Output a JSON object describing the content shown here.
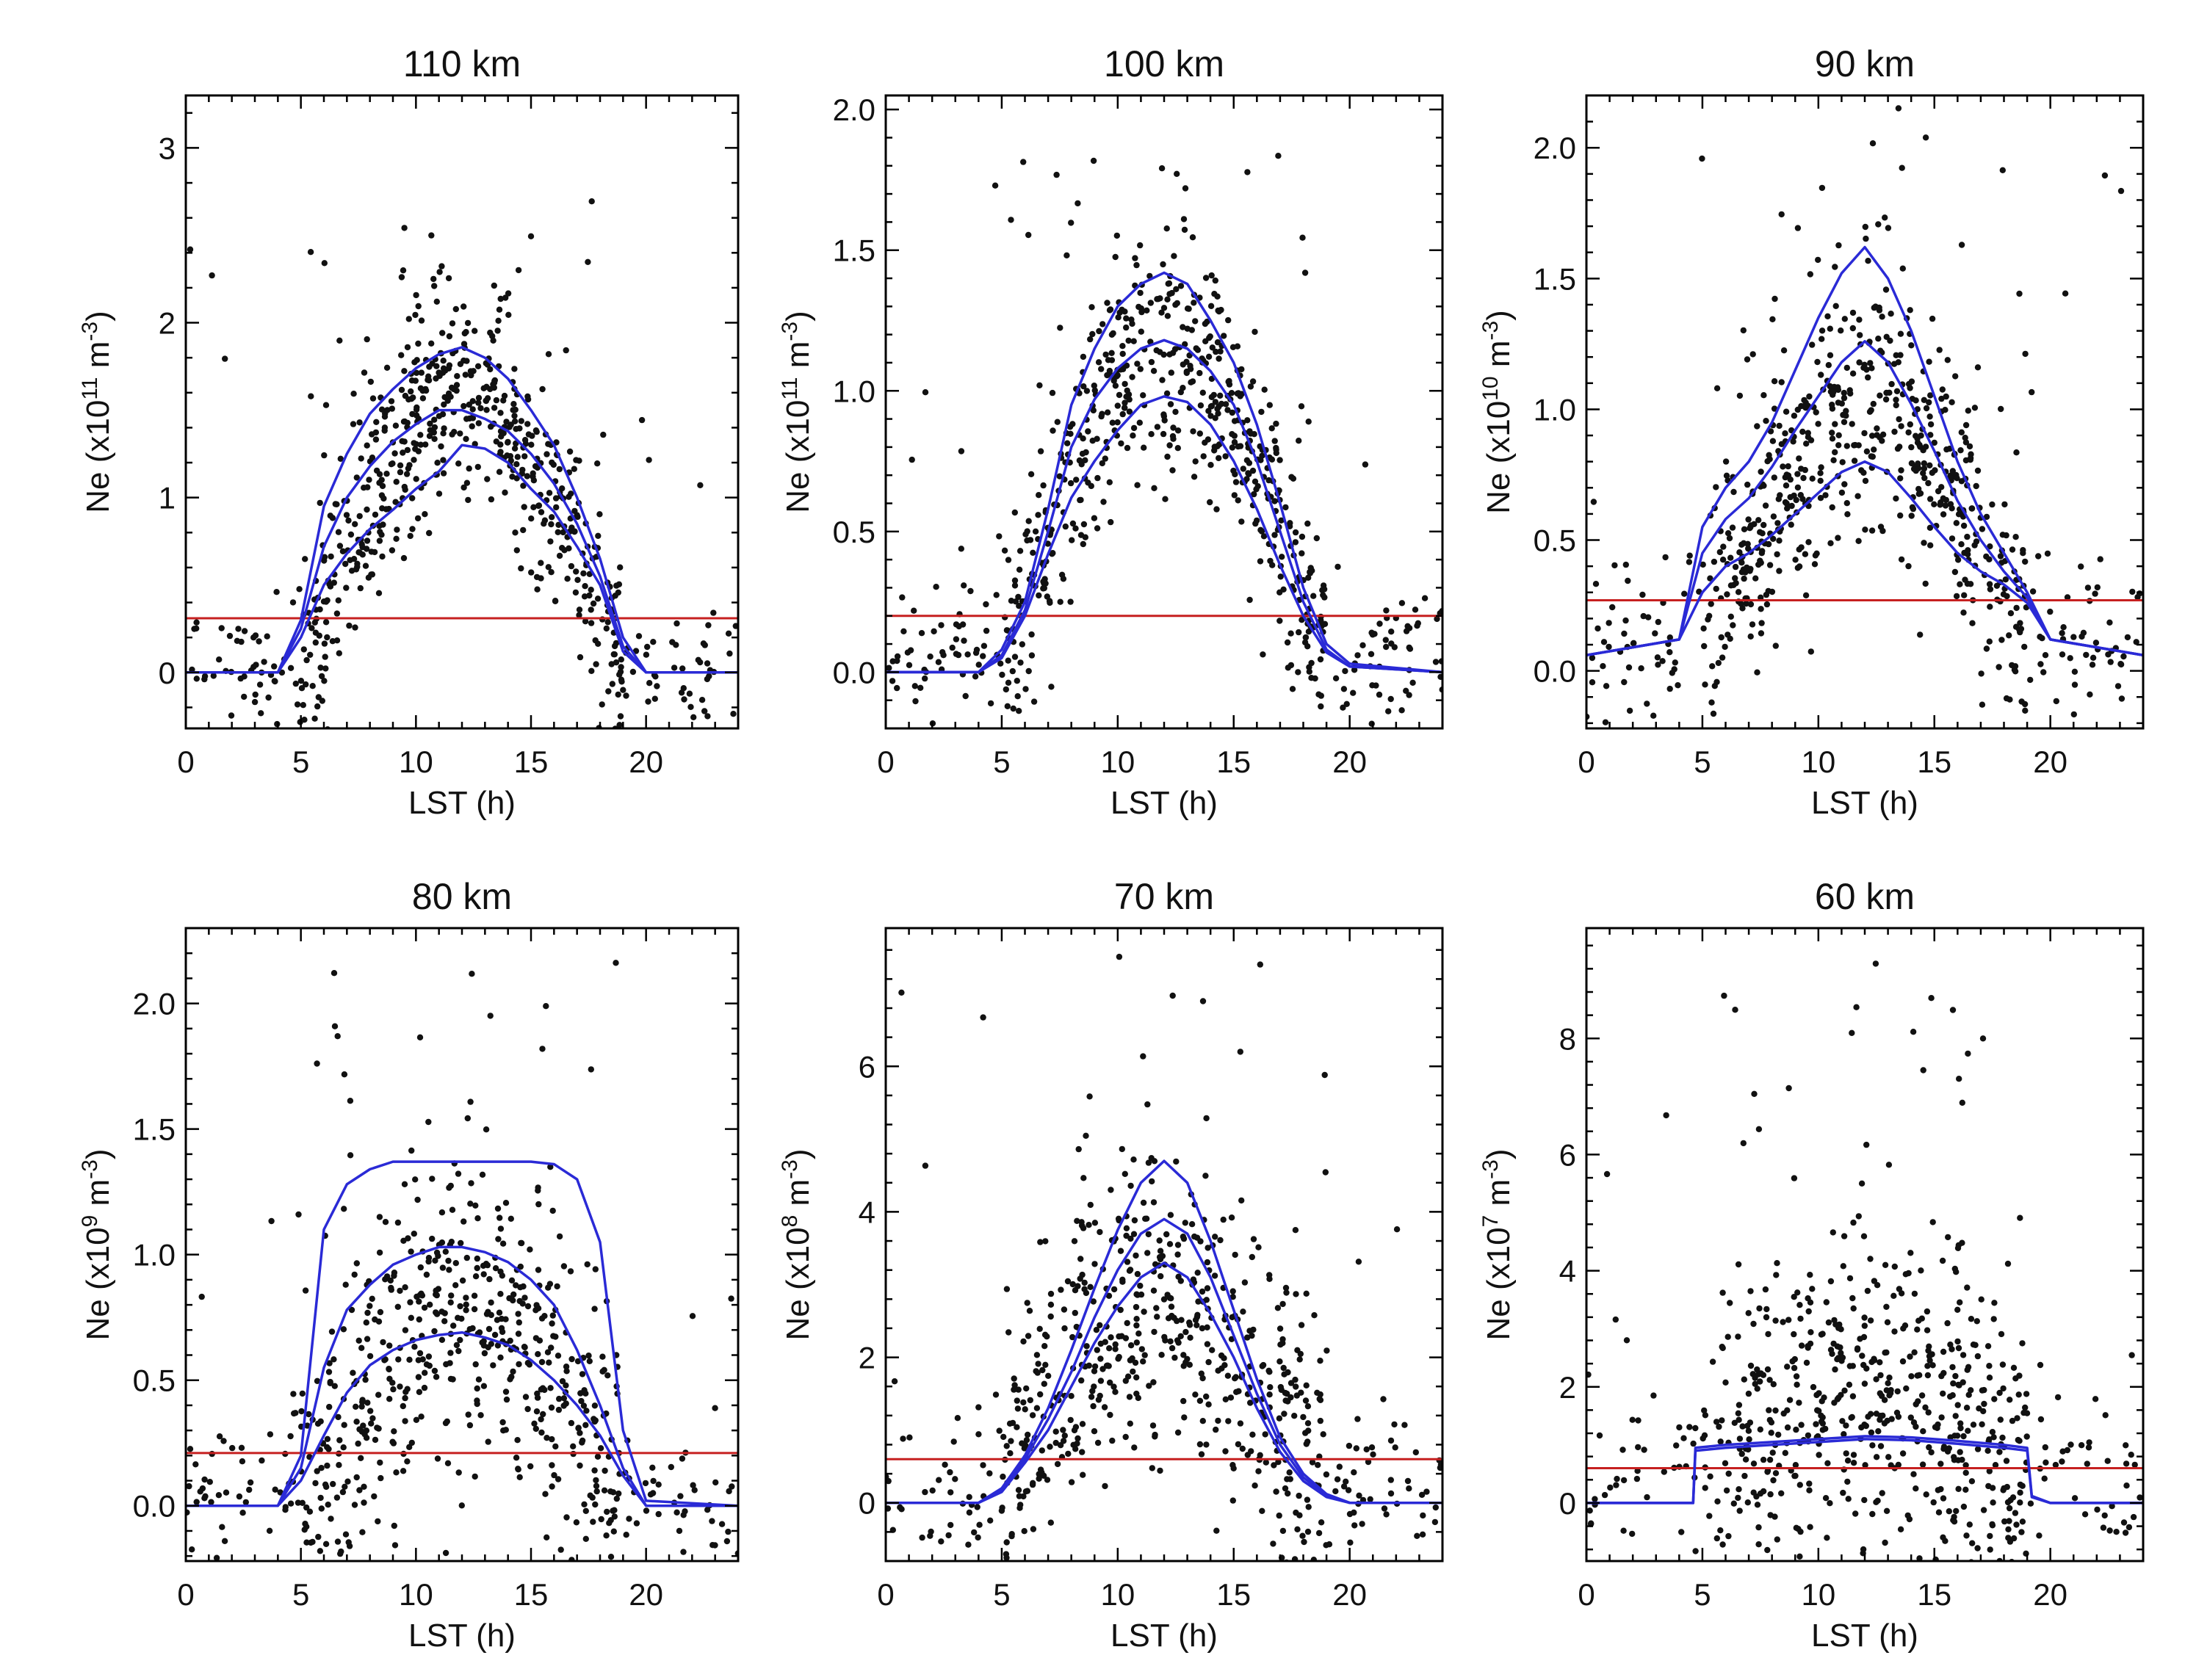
{
  "figure": {
    "colors": {
      "points": "#111111",
      "fit_curves": "#2a2ad6",
      "threshold": "#c62020"
    }
  },
  "chart_data": [
    {
      "type": "scatter",
      "title": "110 km",
      "xlabel": "LST (h)",
      "ylabel": {
        "main": "Ne (x10",
        "exp": "11",
        "unit": " m",
        "unit_exp": "-3",
        "close": ")"
      },
      "xlim": [
        0,
        24
      ],
      "ylim": [
        -0.32,
        3.3
      ],
      "xticks": [
        0,
        5,
        10,
        15,
        20
      ],
      "yticks": [
        0,
        1,
        2,
        3
      ],
      "ytick_labels": [
        "0",
        "1",
        "2",
        "3"
      ],
      "threshold": 0.31,
      "curves": [
        {
          "x": [
            0,
            4,
            5,
            6,
            7,
            8,
            9,
            10,
            11,
            12,
            13,
            14,
            15,
            16,
            17,
            18,
            19,
            20,
            24
          ],
          "y": [
            0,
            0,
            0.2,
            0.5,
            0.68,
            0.82,
            0.93,
            1.05,
            1.15,
            1.3,
            1.28,
            1.2,
            1.05,
            0.92,
            0.72,
            0.5,
            0.12,
            0,
            0
          ]
        },
        {
          "x": [
            0,
            4,
            5,
            6,
            7,
            8,
            9,
            10,
            11,
            12,
            13,
            14,
            15,
            16,
            17,
            18,
            19,
            20,
            24
          ],
          "y": [
            0,
            0,
            0.25,
            0.72,
            1.0,
            1.18,
            1.32,
            1.42,
            1.5,
            1.5,
            1.45,
            1.38,
            1.25,
            1.08,
            0.85,
            0.55,
            0.15,
            0,
            0
          ]
        },
        {
          "x": [
            0,
            4,
            5,
            6,
            7,
            8,
            9,
            10,
            11,
            12,
            13,
            14,
            15,
            16,
            17,
            18,
            19,
            20,
            24
          ],
          "y": [
            0,
            0,
            0.3,
            0.95,
            1.25,
            1.48,
            1.62,
            1.74,
            1.82,
            1.86,
            1.8,
            1.68,
            1.5,
            1.3,
            1.0,
            0.65,
            0.2,
            0,
            0
          ]
        }
      ],
      "scatter": {
        "peak": 1.6,
        "spread": 0.3,
        "night": 0.0,
        "night_spread": 0.18,
        "outlier_max": 2.7,
        "n": 700
      }
    },
    {
      "type": "scatter",
      "title": "100 km",
      "xlabel": "LST (h)",
      "ylabel": {
        "main": "Ne (x10",
        "exp": "11",
        "unit": " m",
        "unit_exp": "-3",
        "close": ")"
      },
      "xlim": [
        0,
        24
      ],
      "ylim": [
        -0.2,
        2.05
      ],
      "xticks": [
        0,
        5,
        10,
        15,
        20
      ],
      "yticks": [
        0,
        0.5,
        1.0,
        1.5,
        2.0
      ],
      "ytick_labels": [
        "0.0",
        "0.5",
        "1.0",
        "1.5",
        "2.0"
      ],
      "threshold": 0.2,
      "curves": [
        {
          "x": [
            0,
            4,
            5,
            6,
            7,
            8,
            9,
            10,
            11,
            12,
            13,
            14,
            15,
            16,
            17,
            18,
            19,
            20,
            24
          ],
          "y": [
            0,
            0,
            0.05,
            0.2,
            0.42,
            0.62,
            0.75,
            0.86,
            0.95,
            0.98,
            0.96,
            0.88,
            0.75,
            0.58,
            0.38,
            0.2,
            0.07,
            0.02,
            0
          ]
        },
        {
          "x": [
            0,
            4,
            5,
            6,
            7,
            8,
            9,
            10,
            11,
            12,
            13,
            14,
            15,
            16,
            17,
            18,
            19,
            20,
            24
          ],
          "y": [
            0,
            0,
            0.06,
            0.22,
            0.5,
            0.8,
            0.97,
            1.08,
            1.15,
            1.18,
            1.15,
            1.07,
            0.95,
            0.75,
            0.5,
            0.25,
            0.08,
            0.02,
            0
          ]
        },
        {
          "x": [
            0,
            4,
            5,
            6,
            7,
            8,
            9,
            10,
            11,
            12,
            13,
            14,
            15,
            16,
            17,
            18,
            19,
            20,
            24
          ],
          "y": [
            0,
            0,
            0.08,
            0.25,
            0.58,
            0.95,
            1.15,
            1.3,
            1.38,
            1.42,
            1.38,
            1.25,
            1.1,
            0.88,
            0.6,
            0.3,
            0.1,
            0.03,
            0
          ]
        }
      ],
      "scatter": {
        "peak": 1.15,
        "spread": 0.2,
        "night": 0.05,
        "night_spread": 0.12,
        "outlier_max": 1.85,
        "n": 700
      }
    },
    {
      "type": "scatter",
      "title": "90 km",
      "xlabel": "LST (h)",
      "ylabel": {
        "main": "Ne (x10",
        "exp": "10",
        "unit": " m",
        "unit_exp": "-3",
        "close": ")"
      },
      "xlim": [
        0,
        24
      ],
      "ylim": [
        -0.22,
        2.2
      ],
      "xticks": [
        0,
        5,
        10,
        15,
        20
      ],
      "yticks": [
        0,
        0.5,
        1.0,
        1.5,
        2.0
      ],
      "ytick_labels": [
        "0.0",
        "0.5",
        "1.0",
        "1.5",
        "2.0"
      ],
      "threshold": 0.27,
      "curves": [
        {
          "x": [
            0,
            4,
            5,
            6,
            7,
            8,
            9,
            10,
            11,
            12,
            13,
            14,
            15,
            16,
            17,
            18,
            19,
            20,
            24
          ],
          "y": [
            0.06,
            0.12,
            0.3,
            0.4,
            0.45,
            0.52,
            0.6,
            0.68,
            0.76,
            0.8,
            0.76,
            0.66,
            0.55,
            0.45,
            0.38,
            0.33,
            0.26,
            0.12,
            0.06
          ]
        },
        {
          "x": [
            0,
            4,
            5,
            6,
            7,
            8,
            9,
            10,
            11,
            12,
            13,
            14,
            15,
            16,
            17,
            18,
            19,
            20,
            24
          ],
          "y": [
            0.06,
            0.12,
            0.45,
            0.58,
            0.66,
            0.78,
            0.92,
            1.05,
            1.18,
            1.26,
            1.18,
            1.02,
            0.84,
            0.65,
            0.5,
            0.38,
            0.28,
            0.12,
            0.06
          ]
        },
        {
          "x": [
            0,
            4,
            5,
            6,
            7,
            8,
            9,
            10,
            11,
            12,
            13,
            14,
            15,
            16,
            17,
            18,
            19,
            20,
            24
          ],
          "y": [
            0.06,
            0.12,
            0.55,
            0.7,
            0.8,
            0.95,
            1.15,
            1.35,
            1.52,
            1.62,
            1.5,
            1.3,
            1.05,
            0.8,
            0.6,
            0.45,
            0.3,
            0.12,
            0.06
          ]
        }
      ],
      "scatter": {
        "peak": 0.95,
        "spread": 0.25,
        "night": 0.12,
        "night_spread": 0.18,
        "outlier_max": 2.2,
        "n": 700
      }
    },
    {
      "type": "scatter",
      "title": "80 km",
      "xlabel": "LST (h)",
      "ylabel": {
        "main": "Ne (x10",
        "exp": "9",
        "unit": " m",
        "unit_exp": "-3",
        "close": ")"
      },
      "xlim": [
        0,
        24
      ],
      "ylim": [
        -0.22,
        2.3
      ],
      "xticks": [
        0,
        5,
        10,
        15,
        20
      ],
      "yticks": [
        0,
        0.5,
        1.0,
        1.5,
        2.0
      ],
      "ytick_labels": [
        "0.0",
        "0.5",
        "1.0",
        "1.5",
        "2.0"
      ],
      "threshold": 0.21,
      "curves": [
        {
          "x": [
            0,
            4,
            5,
            6,
            7,
            8,
            9,
            10,
            11,
            12,
            13,
            14,
            15,
            16,
            17,
            18,
            19,
            20,
            24
          ],
          "y": [
            0,
            0,
            0.1,
            0.28,
            0.45,
            0.56,
            0.62,
            0.66,
            0.68,
            0.69,
            0.67,
            0.64,
            0.58,
            0.5,
            0.4,
            0.28,
            0.12,
            0,
            0
          ]
        },
        {
          "x": [
            0,
            4,
            5,
            6,
            7,
            8,
            9,
            10,
            11,
            12,
            13,
            14,
            15,
            16,
            17,
            18,
            19,
            20,
            24
          ],
          "y": [
            0,
            0,
            0.15,
            0.55,
            0.78,
            0.88,
            0.96,
            1.0,
            1.03,
            1.03,
            1.01,
            0.97,
            0.9,
            0.8,
            0.62,
            0.4,
            0.15,
            0,
            0
          ]
        },
        {
          "x": [
            0,
            4,
            5,
            6,
            7,
            8,
            9,
            10,
            11,
            12,
            13,
            14,
            15,
            16,
            17,
            18,
            19,
            20,
            24
          ],
          "y": [
            0,
            0,
            0.2,
            1.1,
            1.28,
            1.34,
            1.37,
            1.37,
            1.37,
            1.37,
            1.37,
            1.37,
            1.37,
            1.36,
            1.3,
            1.05,
            0.3,
            0.02,
            0
          ]
        }
      ],
      "scatter": {
        "peak": 0.8,
        "spread": 0.3,
        "night": 0.02,
        "night_spread": 0.15,
        "outlier_max": 2.25,
        "n": 650
      }
    },
    {
      "type": "scatter",
      "title": "70 km",
      "xlabel": "LST (h)",
      "ylabel": {
        "main": "Ne (x10",
        "exp": "8",
        "unit": " m",
        "unit_exp": "-3",
        "close": ")"
      },
      "xlim": [
        0,
        24
      ],
      "ylim": [
        -0.8,
        7.9
      ],
      "xticks": [
        0,
        5,
        10,
        15,
        20
      ],
      "yticks": [
        0,
        2,
        4,
        6
      ],
      "ytick_labels": [
        "0",
        "2",
        "4",
        "6"
      ],
      "threshold": 0.6,
      "curves": [
        {
          "x": [
            0,
            4,
            5,
            6,
            7,
            8,
            9,
            10,
            11,
            12,
            13,
            14,
            15,
            16,
            17,
            18,
            19,
            20,
            24
          ],
          "y": [
            0,
            0,
            0.15,
            0.55,
            1.0,
            1.6,
            2.2,
            2.7,
            3.1,
            3.3,
            3.1,
            2.6,
            2.0,
            1.3,
            0.7,
            0.3,
            0.08,
            0,
            0
          ]
        },
        {
          "x": [
            0,
            4,
            5,
            6,
            7,
            8,
            9,
            10,
            11,
            12,
            13,
            14,
            15,
            16,
            17,
            18,
            19,
            20,
            24
          ],
          "y": [
            0,
            0,
            0.18,
            0.6,
            1.15,
            1.8,
            2.55,
            3.2,
            3.7,
            3.9,
            3.7,
            3.1,
            2.3,
            1.5,
            0.8,
            0.35,
            0.1,
            0,
            0
          ]
        },
        {
          "x": [
            0,
            4,
            5,
            6,
            7,
            8,
            9,
            10,
            11,
            12,
            13,
            14,
            15,
            16,
            17,
            18,
            19,
            20,
            24
          ],
          "y": [
            0,
            0,
            0.2,
            0.65,
            1.3,
            2.1,
            2.95,
            3.75,
            4.4,
            4.7,
            4.4,
            3.6,
            2.65,
            1.7,
            0.9,
            0.4,
            0.12,
            0,
            0
          ]
        }
      ],
      "scatter": {
        "peak": 2.8,
        "spread": 1.0,
        "night": 0.2,
        "night_spread": 0.6,
        "outlier_max": 7.6,
        "n": 650
      }
    },
    {
      "type": "scatter",
      "title": "60 km",
      "xlabel": "LST (h)",
      "ylabel": {
        "main": "Ne (x10",
        "exp": "7",
        "unit": " m",
        "unit_exp": "-3",
        "close": ")"
      },
      "xlim": [
        0,
        24
      ],
      "ylim": [
        -1.0,
        9.9
      ],
      "xticks": [
        0,
        5,
        10,
        15,
        20
      ],
      "yticks": [
        0,
        2,
        4,
        6,
        8
      ],
      "ytick_labels": [
        "0",
        "2",
        "4",
        "6",
        "8"
      ],
      "threshold": 0.6,
      "curves": [
        {
          "x": [
            0,
            4.6,
            4.7,
            6,
            8,
            10,
            12,
            14,
            16,
            18,
            19,
            19.2,
            20,
            24
          ],
          "y": [
            0,
            0,
            0.9,
            0.95,
            1.0,
            1.05,
            1.1,
            1.08,
            1.02,
            0.95,
            0.9,
            0.1,
            0,
            0
          ]
        },
        {
          "x": [
            0,
            4.6,
            4.7,
            6,
            8,
            10,
            12,
            14,
            16,
            18,
            19,
            19.2,
            20,
            24
          ],
          "y": [
            0,
            0,
            0.95,
            1.0,
            1.05,
            1.1,
            1.15,
            1.13,
            1.07,
            1.0,
            0.95,
            0.12,
            0,
            0
          ]
        }
      ],
      "scatter": {
        "peak": 2.0,
        "spread": 1.3,
        "night": 0.3,
        "night_spread": 0.8,
        "outlier_max": 9.6,
        "n": 650
      }
    }
  ]
}
